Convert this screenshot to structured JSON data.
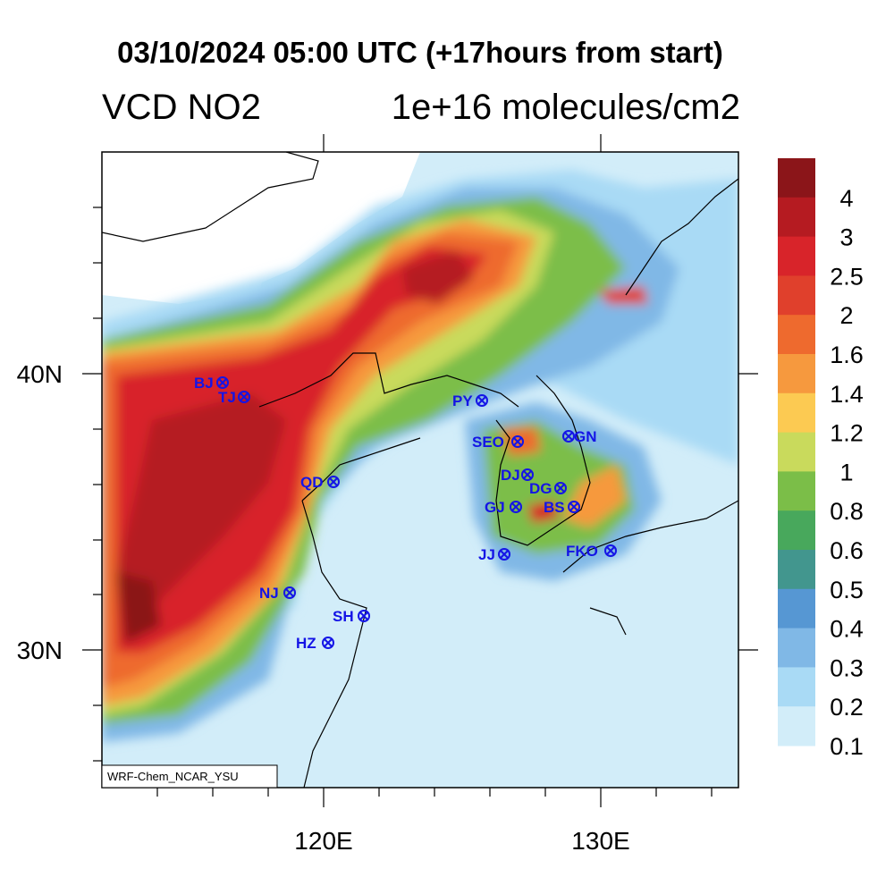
{
  "title": "03/10/2024 05:00 UTC (+17hours from start)",
  "variable": "VCD NO2",
  "units": "1e+16 molecules/cm2",
  "model_tag": "WRF-Chem_NCAR_YSU",
  "lat_labels": [
    "40N",
    "30N"
  ],
  "lon_labels": [
    "120E",
    "130E"
  ],
  "colorbar": {
    "labels": [
      "4",
      "3",
      "2.5",
      "2",
      "1.6",
      "1.4",
      "1.2",
      "1",
      "0.8",
      "0.6",
      "0.5",
      "0.4",
      "0.3",
      "0.2",
      "0.1"
    ],
    "colors": [
      "#8b1519",
      "#b51b21",
      "#d8242a",
      "#e0402c",
      "#ee6a2e",
      "#f6993e",
      "#fcca52",
      "#c9da5c",
      "#7bbe48",
      "#48a85c",
      "#42968e",
      "#5697d3",
      "#80b8e6",
      "#a9daf5",
      "#d2edf9"
    ]
  },
  "cities": [
    {
      "name": "BJ"
    },
    {
      "name": "TJ"
    },
    {
      "name": "PY"
    },
    {
      "name": "SEO"
    },
    {
      "name": "GN"
    },
    {
      "name": "QD"
    },
    {
      "name": "DJ"
    },
    {
      "name": "DG"
    },
    {
      "name": "GJ"
    },
    {
      "name": "BS"
    },
    {
      "name": "JJ"
    },
    {
      "name": "FKO"
    },
    {
      "name": "NJ"
    },
    {
      "name": "SH"
    },
    {
      "name": "HZ"
    }
  ]
}
